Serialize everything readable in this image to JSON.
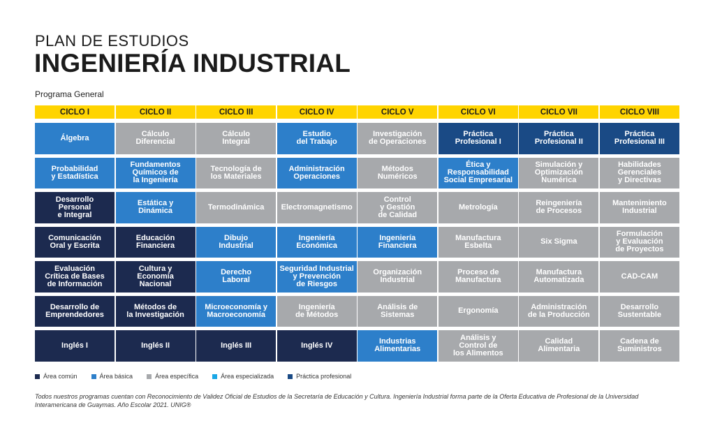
{
  "header": {
    "subtitle": "PLAN DE ESTUDIOS",
    "title": "INGENIERÍA INDUSTRIAL",
    "program": "Programa General"
  },
  "colors": {
    "comun": "#1c2a4f",
    "basica": "#2d7fca",
    "especifica": "#a7a9ac",
    "especializada": "#1aa7e6",
    "practica": "#1a4a85",
    "cycle_header": "#ffd400"
  },
  "cycles": [
    {
      "label": "CICLO I",
      "courses": [
        {
          "name": "Álgebra",
          "area": "basica"
        },
        {
          "name": "Probabilidad\ny Estadística",
          "area": "basica"
        },
        {
          "name": "Desarrollo\nPersonal\ne Integral",
          "area": "comun"
        },
        {
          "name": "Comunicación\nOral y Escrita",
          "area": "comun"
        },
        {
          "name": "Evaluación\nCrítica de Bases\nde Información",
          "area": "comun"
        },
        {
          "name": "Desarrollo de\nEmprendedores",
          "area": "comun"
        },
        {
          "name": "Inglés I",
          "area": "comun"
        }
      ]
    },
    {
      "label": "CICLO II",
      "courses": [
        {
          "name": "Cálculo\nDiferencial",
          "area": "especifica"
        },
        {
          "name": "Fundamentos\nQuímicos de\nla Ingeniería",
          "area": "basica"
        },
        {
          "name": "Estática y\nDinámica",
          "area": "basica"
        },
        {
          "name": "Educación\nFinanciera",
          "area": "comun"
        },
        {
          "name": "Cultura y\nEconomía\nNacional",
          "area": "comun"
        },
        {
          "name": "Métodos de\nla Investigación",
          "area": "comun"
        },
        {
          "name": "Inglés II",
          "area": "comun"
        }
      ]
    },
    {
      "label": "CICLO III",
      "courses": [
        {
          "name": "Cálculo\nIntegral",
          "area": "especifica"
        },
        {
          "name": "Tecnología de\nlos Materiales",
          "area": "especifica"
        },
        {
          "name": "Termodinámica",
          "area": "especifica"
        },
        {
          "name": "Dibujo\nIndustrial",
          "area": "basica"
        },
        {
          "name": "Derecho\nLaboral",
          "area": "basica"
        },
        {
          "name": "Microeconomía y\nMacroeconomía",
          "area": "basica"
        },
        {
          "name": "Inglés III",
          "area": "comun"
        }
      ]
    },
    {
      "label": "CICLO IV",
      "courses": [
        {
          "name": "Estudio\ndel Trabajo",
          "area": "basica"
        },
        {
          "name": "Administración\nOperaciones",
          "area": "basica"
        },
        {
          "name": "Electromagnetismo",
          "area": "especifica"
        },
        {
          "name": "Ingeniería\nEconómica",
          "area": "basica"
        },
        {
          "name": "Seguridad Industrial\ny Prevención\nde Riesgos",
          "area": "basica"
        },
        {
          "name": "Ingeniería\nde Métodos",
          "area": "especifica"
        },
        {
          "name": "Inglés IV",
          "area": "comun"
        }
      ]
    },
    {
      "label": "CICLO V",
      "courses": [
        {
          "name": "Investigación\nde Operaciones",
          "area": "especifica"
        },
        {
          "name": "Métodos\nNuméricos",
          "area": "especifica"
        },
        {
          "name": "Control\ny Gestión\nde Calidad",
          "area": "especifica"
        },
        {
          "name": "Ingeniería\nFinanciera",
          "area": "basica"
        },
        {
          "name": "Organización\nIndustrial",
          "area": "especifica"
        },
        {
          "name": "Análisis de\nSistemas",
          "area": "especifica"
        },
        {
          "name": "Industrias\nAlimentarias",
          "area": "basica"
        }
      ]
    },
    {
      "label": "CICLO VI",
      "courses": [
        {
          "name": "Práctica\nProfesional I",
          "area": "practica"
        },
        {
          "name": "Ética y\nResponsabilidad\nSocial Empresarial",
          "area": "basica"
        },
        {
          "name": "Metrología",
          "area": "especifica"
        },
        {
          "name": "Manufactura\nEsbelta",
          "area": "especifica"
        },
        {
          "name": "Proceso de\nManufactura",
          "area": "especifica"
        },
        {
          "name": "Ergonomía",
          "area": "especifica"
        },
        {
          "name": "Análisis y\nControl de\nlos Alimentos",
          "area": "especifica"
        }
      ]
    },
    {
      "label": "CICLO VII",
      "courses": [
        {
          "name": "Práctica\nProfesional II",
          "area": "practica"
        },
        {
          "name": "Simulación y\nOptimización\nNumérica",
          "area": "especifica"
        },
        {
          "name": "Reingeniería\nde Procesos",
          "area": "especifica"
        },
        {
          "name": "Six Sigma",
          "area": "especifica"
        },
        {
          "name": "Manufactura\nAutomatizada",
          "area": "especifica"
        },
        {
          "name": "Administración\nde la Producción",
          "area": "especifica"
        },
        {
          "name": "Calidad\nAlimentaria",
          "area": "especifica"
        }
      ]
    },
    {
      "label": "CICLO VIII",
      "courses": [
        {
          "name": "Práctica\nProfesional III",
          "area": "practica"
        },
        {
          "name": "Habilidades\nGerenciales\ny Directivas",
          "area": "especifica"
        },
        {
          "name": "Mantenimiento\nIndustrial",
          "area": "especifica"
        },
        {
          "name": "Formulación\ny Evaluación\nde Proyectos",
          "area": "especifica"
        },
        {
          "name": "CAD-CAM",
          "area": "especifica"
        },
        {
          "name": "Desarrollo\nSustentable",
          "area": "especifica"
        },
        {
          "name": "Cadena de\nSuministros",
          "area": "especifica"
        }
      ]
    }
  ],
  "legend": [
    {
      "label": "Área común",
      "area": "comun"
    },
    {
      "label": "Área básica",
      "area": "basica"
    },
    {
      "label": "Área específica",
      "area": "especifica"
    },
    {
      "label": "Área especializada",
      "area": "especializada"
    },
    {
      "label": "Práctica profesional",
      "area": "practica"
    }
  ],
  "footnote": "Todos nuestros programas cuentan con Reconocimiento de Validez Oficial de Estudios de la Secretaría de Educación y Cultura. Ingeniería Industrial forma parte de la Oferta Educativa de Profesional de la Universidad Interamericana de Guaymas. Año Escolar 2021. UNIG®"
}
